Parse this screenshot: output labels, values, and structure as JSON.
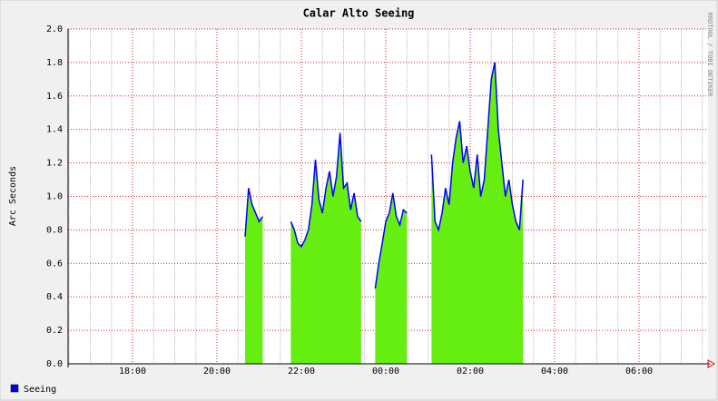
{
  "chart_data": {
    "type": "area",
    "title": "Calar Alto Seeing",
    "y_label": "Arc Seconds",
    "watermark": "RRDTOOL / TOBI OETIKER",
    "x": [
      "16:30",
      "16:35",
      "16:40",
      "16:45",
      "16:50",
      "16:55",
      "17:00",
      "17:05",
      "17:10",
      "17:15",
      "17:20",
      "17:25",
      "17:30",
      "17:35",
      "17:40",
      "17:45",
      "17:50",
      "17:55",
      "18:00",
      "18:05",
      "18:10",
      "18:15",
      "18:20",
      "18:25",
      "18:30",
      "18:35",
      "18:40",
      "18:45",
      "18:50",
      "18:55",
      "19:00",
      "19:05",
      "19:10",
      "19:15",
      "19:20",
      "19:25",
      "19:30",
      "19:35",
      "19:40",
      "19:45",
      "19:50",
      "19:55",
      "20:00",
      "20:05",
      "20:10",
      "20:15",
      "20:20",
      "20:25",
      "20:30",
      "20:35",
      "20:40",
      "20:45",
      "20:50",
      "20:55",
      "21:00",
      "21:05",
      "21:10",
      "21:15",
      "21:20",
      "21:25",
      "21:30",
      "21:35",
      "21:40",
      "21:45",
      "21:50",
      "21:55",
      "22:00",
      "22:05",
      "22:10",
      "22:15",
      "22:20",
      "22:25",
      "22:30",
      "22:35",
      "22:40",
      "22:45",
      "22:50",
      "22:55",
      "23:00",
      "23:05",
      "23:10",
      "23:15",
      "23:20",
      "23:25",
      "23:30",
      "23:35",
      "23:40",
      "23:45",
      "23:50",
      "23:55",
      "00:00",
      "00:05",
      "00:10",
      "00:15",
      "00:20",
      "00:25",
      "00:30",
      "00:35",
      "00:40",
      "00:45",
      "00:50",
      "00:55",
      "01:00",
      "01:05",
      "01:10",
      "01:15",
      "01:20",
      "01:25",
      "01:30",
      "01:35",
      "01:40",
      "01:45",
      "01:50",
      "01:55",
      "02:00",
      "02:05",
      "02:10",
      "02:15",
      "02:20",
      "02:25",
      "02:30",
      "02:35",
      "02:40",
      "02:45",
      "02:50",
      "02:55",
      "03:00",
      "03:05",
      "03:10",
      "03:15",
      "03:20",
      "03:25",
      "03:30",
      "03:35",
      "03:40",
      "03:45",
      "03:50",
      "03:55",
      "04:00",
      "04:05",
      "04:10",
      "04:15",
      "04:20",
      "04:25",
      "04:30",
      "04:35",
      "04:40",
      "04:45",
      "04:50",
      "04:55",
      "05:00",
      "05:05",
      "05:10",
      "05:15",
      "05:20",
      "05:25",
      "05:30",
      "05:35",
      "05:40",
      "05:45",
      "05:50",
      "05:55",
      "06:00",
      "06:05",
      "06:10",
      "06:15",
      "06:20",
      "06:25",
      "06:30",
      "06:35",
      "06:40",
      "06:45",
      "06:50",
      "06:55",
      "07:00",
      "07:05",
      "07:10",
      "07:15",
      "07:20",
      "07:25",
      "07:30",
      "07:35"
    ],
    "series": [
      {
        "name": "Seeing",
        "color": "#0000ff",
        "fill": "#66ee11",
        "values": [
          null,
          null,
          null,
          null,
          null,
          null,
          null,
          null,
          null,
          null,
          null,
          null,
          null,
          null,
          null,
          null,
          null,
          null,
          null,
          null,
          null,
          null,
          null,
          null,
          null,
          null,
          null,
          null,
          null,
          null,
          null,
          null,
          null,
          null,
          null,
          null,
          null,
          null,
          null,
          null,
          null,
          null,
          null,
          null,
          null,
          null,
          null,
          null,
          null,
          null,
          0.76,
          1.05,
          0.95,
          0.9,
          0.85,
          0.88,
          null,
          null,
          null,
          null,
          null,
          null,
          null,
          0.85,
          0.8,
          0.72,
          0.7,
          0.74,
          0.8,
          0.95,
          1.22,
          0.98,
          0.9,
          1.05,
          1.15,
          1.0,
          1.12,
          1.38,
          1.05,
          1.08,
          0.92,
          1.02,
          0.88,
          0.85,
          null,
          null,
          null,
          0.45,
          0.6,
          0.72,
          0.85,
          0.9,
          1.02,
          0.88,
          0.83,
          0.92,
          0.9,
          null,
          null,
          null,
          null,
          null,
          null,
          1.25,
          0.85,
          0.8,
          0.9,
          1.05,
          0.95,
          1.2,
          1.35,
          1.45,
          1.2,
          1.3,
          1.15,
          1.05,
          1.25,
          1.0,
          1.1,
          1.4,
          1.7,
          1.8,
          1.4,
          1.2,
          1.0,
          1.1,
          0.95,
          0.85,
          0.8,
          1.1,
          null,
          null,
          null,
          null,
          null,
          null,
          null,
          null,
          null,
          null,
          null,
          null,
          null,
          null,
          null,
          null,
          null,
          null,
          null,
          null,
          null,
          null,
          null,
          null,
          null,
          null,
          null,
          null,
          null,
          null,
          null,
          null,
          null,
          null,
          null,
          null,
          null,
          null,
          null,
          null,
          null,
          null,
          null,
          null,
          null,
          null,
          null,
          null,
          null,
          null,
          null,
          null
        ]
      }
    ],
    "xticks": [
      "18:00",
      "20:00",
      "22:00",
      "00:00",
      "02:00",
      "04:00",
      "06:00"
    ],
    "ylim": [
      0,
      2
    ],
    "yticks": [
      {
        "value": 0,
        "label": "0.0"
      },
      0.2,
      0.4,
      0.6,
      0.8,
      {
        "value": 1,
        "label": "1.0"
      },
      1.2,
      1.4,
      1.6,
      1.8,
      {
        "value": 2,
        "label": "2.0"
      }
    ],
    "grid": true
  }
}
